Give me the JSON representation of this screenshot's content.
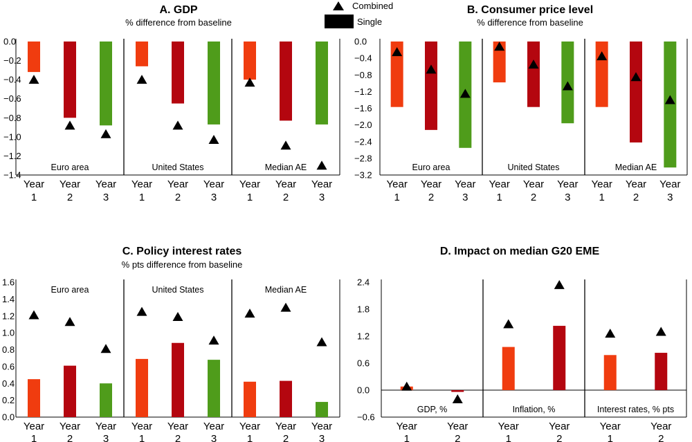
{
  "legend": {
    "combined_label": "Combined",
    "single_label": "Single"
  },
  "colors": {
    "year1": "#f03c0f",
    "year2": "#b4060f",
    "year3": "#4f9c1b",
    "marker": "#000000",
    "axis": "#000000"
  },
  "chart_data": [
    {
      "id": "A",
      "type": "bar",
      "title": "A. GDP",
      "subtitle": "% difference from baseline",
      "ylim": [
        -1.4,
        0.0
      ],
      "ytick_step": 0.2,
      "ytick_decimals": 1,
      "group_label_position": "bottom",
      "categories": [
        [
          "Year",
          "1"
        ],
        [
          "Year",
          "2"
        ],
        [
          "Year",
          "3"
        ]
      ],
      "groups": [
        {
          "name": "Euro area",
          "single": [
            -0.32,
            -0.8,
            -0.88
          ],
          "combined": [
            -0.4,
            -0.88,
            -0.97
          ]
        },
        {
          "name": "United States",
          "single": [
            -0.26,
            -0.65,
            -0.87
          ],
          "combined": [
            -0.4,
            -0.88,
            -1.03
          ]
        },
        {
          "name": "Median AE",
          "single": [
            -0.4,
            -0.83,
            -0.87
          ],
          "combined": [
            -0.43,
            -1.09,
            -1.3
          ]
        }
      ]
    },
    {
      "id": "B",
      "type": "bar",
      "title": "B. Consumer price level",
      "subtitle": "% difference from baseline",
      "ylim": [
        -3.2,
        0.0
      ],
      "ytick_step": 0.4,
      "ytick_decimals": 1,
      "group_label_position": "bottom",
      "categories": [
        [
          "Year",
          "1"
        ],
        [
          "Year",
          "2"
        ],
        [
          "Year",
          "3"
        ]
      ],
      "groups": [
        {
          "name": "Euro area",
          "single": [
            -1.57,
            -2.12,
            -2.55
          ],
          "combined": [
            -0.25,
            -0.67,
            -1.25
          ]
        },
        {
          "name": "United States",
          "single": [
            -0.98,
            -1.57,
            -1.96
          ],
          "combined": [
            -0.12,
            -0.55,
            -1.07
          ]
        },
        {
          "name": "Median AE",
          "single": [
            -1.57,
            -2.42,
            -3.02
          ],
          "combined": [
            -0.35,
            -0.85,
            -1.4
          ]
        }
      ]
    },
    {
      "id": "C",
      "type": "bar",
      "title": "C. Policy interest rates",
      "subtitle": "% pts difference from baseline",
      "ylim": [
        0.0,
        1.6
      ],
      "ytick_step": 0.2,
      "ytick_decimals": 1,
      "group_label_position": "top",
      "categories": [
        [
          "Year",
          "1"
        ],
        [
          "Year",
          "2"
        ],
        [
          "Year",
          "3"
        ]
      ],
      "groups": [
        {
          "name": "Euro area",
          "single": [
            0.45,
            0.61,
            0.4
          ],
          "combined": [
            1.21,
            1.13,
            0.81
          ]
        },
        {
          "name": "United States",
          "single": [
            0.69,
            0.88,
            0.68
          ],
          "combined": [
            1.25,
            1.19,
            0.91
          ]
        },
        {
          "name": "Median AE",
          "single": [
            0.42,
            0.43,
            0.18
          ],
          "combined": [
            1.23,
            1.3,
            0.89
          ]
        }
      ]
    },
    {
      "id": "D",
      "type": "bar",
      "title": "D. Impact on median G20 EME",
      "subtitle": "",
      "ylim": [
        -0.6,
        2.4
      ],
      "ytick_step": 0.6,
      "ytick_decimals": 1,
      "group_label_position": "bottom",
      "categories": [
        [
          "Year",
          "1"
        ],
        [
          "Year",
          "2"
        ]
      ],
      "groups": [
        {
          "name": "GDP, %",
          "single": [
            0.08,
            -0.04
          ],
          "combined": [
            0.08,
            -0.2
          ]
        },
        {
          "name": "Inflation, %",
          "single": [
            0.96,
            1.43
          ],
          "combined": [
            1.47,
            2.34
          ]
        },
        {
          "name": "Interest rates, % pts",
          "single": [
            0.78,
            0.83
          ],
          "combined": [
            1.26,
            1.3
          ]
        }
      ]
    }
  ]
}
